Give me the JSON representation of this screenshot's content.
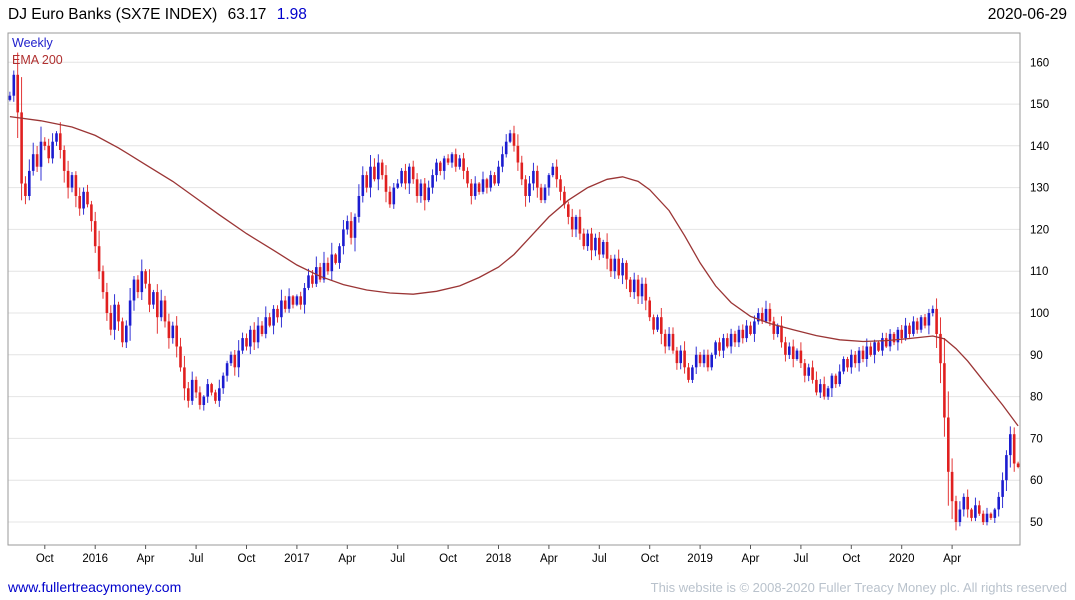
{
  "header": {
    "title": "DJ Euro Banks (SX7E INDEX)",
    "last_price": "63.17",
    "change": "1.98",
    "date": "2020-06-29"
  },
  "chart_labels": {
    "frequency": "Weekly",
    "overlay": "EMA 200"
  },
  "footer": {
    "website": "www.fullertreacymoney.com",
    "copyright": "This website is © 2008-2020 Fuller Treacy Money plc. All rights reserved"
  },
  "colors": {
    "up": "#1c1cd0",
    "down": "#e02020",
    "ema": "#9b3535",
    "grid": "#e4e4e4",
    "frame": "#999999",
    "tick": "#555555"
  },
  "chart_data": {
    "type": "candlestick",
    "title": "DJ Euro Banks (SX7E INDEX)",
    "frequency": "weekly",
    "x_start": "2015-08",
    "x_end": "2020-06-29",
    "last_close": 63.17,
    "change": 1.98,
    "ylim": [
      44.5,
      167
    ],
    "grid": true,
    "y_axis_side": "right",
    "y_ticks": [
      50,
      60,
      70,
      80,
      90,
      100,
      110,
      120,
      130,
      140,
      150,
      160
    ],
    "x_ticks": [
      {
        "label": "Oct",
        "week": 9
      },
      {
        "label": "2016",
        "week": 22
      },
      {
        "label": "Apr",
        "week": 35
      },
      {
        "label": "Jul",
        "week": 48
      },
      {
        "label": "Oct",
        "week": 61
      },
      {
        "label": "2017",
        "week": 74
      },
      {
        "label": "Apr",
        "week": 87
      },
      {
        "label": "Jul",
        "week": 100
      },
      {
        "label": "Oct",
        "week": 113
      },
      {
        "label": "2018",
        "week": 126
      },
      {
        "label": "Apr",
        "week": 139
      },
      {
        "label": "Jul",
        "week": 152
      },
      {
        "label": "Oct",
        "week": 165
      },
      {
        "label": "2019",
        "week": 178
      },
      {
        "label": "Apr",
        "week": 191
      },
      {
        "label": "Jul",
        "week": 204
      },
      {
        "label": "Oct",
        "week": 217
      },
      {
        "label": "2020",
        "week": 230
      },
      {
        "label": "Apr",
        "week": 243
      }
    ],
    "closes": [
      152,
      157,
      148,
      131,
      128,
      134,
      138,
      135,
      141,
      140,
      137,
      141,
      143,
      139,
      134,
      130,
      133,
      128,
      125,
      129,
      126,
      122,
      116,
      110,
      105,
      100,
      96,
      102,
      98,
      93,
      97,
      103,
      108,
      105,
      110,
      107,
      102,
      105,
      99,
      103,
      98,
      94,
      97,
      92,
      87,
      82,
      79,
      84,
      81,
      78,
      80,
      83,
      81,
      79,
      82,
      85,
      88,
      90,
      87,
      91,
      94,
      92,
      96,
      93,
      97,
      95,
      99,
      97,
      101,
      99,
      103,
      101,
      104,
      102,
      104,
      102,
      106,
      109,
      107,
      111,
      108,
      112,
      110,
      114,
      112,
      116,
      120,
      122,
      118,
      123,
      128,
      133,
      130,
      135,
      132,
      136,
      133,
      129,
      126,
      130,
      131,
      134,
      131,
      135,
      132,
      128,
      131,
      127,
      130,
      133,
      136,
      134,
      137,
      136,
      138,
      135,
      137,
      134,
      131,
      128,
      131,
      129,
      132,
      130,
      133,
      131,
      135,
      138,
      141,
      143,
      140,
      136,
      132,
      128,
      131,
      134,
      130,
      127,
      130,
      133,
      135,
      132,
      129,
      126,
      123,
      120,
      123,
      119,
      116,
      119,
      115,
      118,
      114,
      117,
      113,
      110,
      113,
      109,
      112,
      108,
      105,
      108,
      104,
      107,
      103,
      99,
      96,
      99,
      95,
      92,
      95,
      91,
      88,
      91,
      87,
      84,
      87,
      90,
      88,
      90,
      87,
      90,
      93,
      91,
      94,
      92,
      95,
      93,
      96,
      94,
      97,
      95,
      98,
      100,
      98,
      101,
      98,
      95,
      97,
      93,
      90,
      92,
      89,
      91,
      88,
      85,
      87,
      84,
      81,
      83,
      80,
      82,
      85,
      83,
      86,
      89,
      87,
      90,
      88,
      91,
      89,
      92,
      90,
      93,
      91,
      94,
      92,
      95,
      93,
      96,
      94,
      97,
      95,
      98,
      96,
      99,
      97,
      100,
      101,
      95,
      88,
      75,
      62,
      55,
      50,
      53,
      56,
      53,
      51,
      54,
      52,
      50,
      52,
      51,
      53,
      56,
      60,
      66,
      71,
      64,
      63.17
    ],
    "series": [
      {
        "name": "EMA 200",
        "points": [
          [
            0,
            147
          ],
          [
            8,
            146
          ],
          [
            16,
            144.5
          ],
          [
            22,
            142.5
          ],
          [
            28,
            139.5
          ],
          [
            35,
            135.5
          ],
          [
            42,
            131.5
          ],
          [
            48,
            127.5
          ],
          [
            54,
            123.5
          ],
          [
            61,
            119
          ],
          [
            68,
            115
          ],
          [
            74,
            111.5
          ],
          [
            80,
            108.8
          ],
          [
            86,
            106.8
          ],
          [
            92,
            105.5
          ],
          [
            98,
            104.8
          ],
          [
            104,
            104.5
          ],
          [
            110,
            105.2
          ],
          [
            116,
            106.5
          ],
          [
            121,
            108.5
          ],
          [
            126,
            111
          ],
          [
            130,
            114
          ],
          [
            134,
            118
          ],
          [
            139,
            123
          ],
          [
            144,
            127
          ],
          [
            149,
            130
          ],
          [
            154,
            132
          ],
          [
            158,
            132.6
          ],
          [
            162,
            131.5
          ],
          [
            165,
            129.5
          ],
          [
            170,
            124.5
          ],
          [
            174,
            118.5
          ],
          [
            178,
            112
          ],
          [
            182,
            106.5
          ],
          [
            186,
            102.5
          ],
          [
            191,
            99.2
          ],
          [
            196,
            97.5
          ],
          [
            202,
            96
          ],
          [
            208,
            94.6
          ],
          [
            214,
            93.6
          ],
          [
            220,
            93.2
          ],
          [
            226,
            93.4
          ],
          [
            232,
            93.9
          ],
          [
            238,
            94.5
          ],
          [
            241,
            93.8
          ],
          [
            244,
            91.5
          ],
          [
            247,
            88.5
          ],
          [
            250,
            85
          ],
          [
            253,
            81.5
          ],
          [
            256,
            78
          ],
          [
            258,
            75.5
          ],
          [
            260,
            73
          ]
        ]
      }
    ]
  }
}
